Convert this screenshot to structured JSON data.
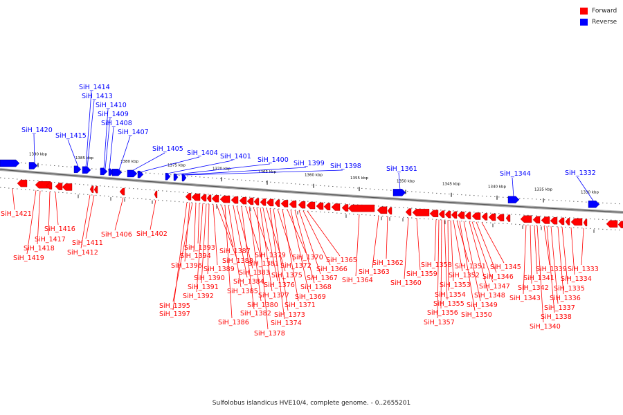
{
  "legend": {
    "forward_label": "Forward",
    "reverse_label": "Reverse",
    "forward_color": "#ff0000",
    "reverse_color": "#0000ff"
  },
  "caption": "Sulfolobus islandicus HVE10/4, complete genome. - 0..2655201",
  "scale_ticks": [
    "1390 kbp",
    "1385 kbp",
    "1380 kbp",
    "1375 kbp",
    "1370 kbp",
    "1365 kbp",
    "1360 kbp",
    "1355 kbp",
    "1350 kbp",
    "1345 kbp",
    "1340 kbp",
    "1335 kbp",
    "1330 kbp"
  ],
  "reverse_genes": [
    "SiH_1420",
    "SiH_1415",
    "SiH_1414",
    "SiH_1413",
    "SiH_1410",
    "SiH_1409",
    "SiH_1408",
    "SiH_1407",
    "SiH_1405",
    "SiH_1404",
    "SiH_1401",
    "SiH_1400",
    "SiH_1399",
    "SiH_1398",
    "SiH_1361",
    "SiH_1344",
    "SiH_1332"
  ],
  "forward_genes": [
    "SiH_1421",
    "SiH_1419",
    "SiH_1418",
    "SiH_1417",
    "SiH_1416",
    "SiH_1412",
    "SiH_1411",
    "SiH_1406",
    "SiH_1402",
    "SiH_1397",
    "SiH_1396",
    "SiH_1395",
    "SiH_1394",
    "SiH_1393",
    "SiH_1392",
    "SiH_1391",
    "SiH_1390",
    "SiH_1389",
    "SiH_1388",
    "SiH_1387",
    "SiH_1386",
    "SiH_1385",
    "SiH_1384",
    "SiH_1383",
    "SiH_1382",
    "SiH_1381",
    "SiH_1380",
    "SiH_1379",
    "SiH_1378",
    "SiH_1377",
    "SiH_1376",
    "SiH_1375",
    "SiH_1374",
    "SiH_1373",
    "SiH_1372",
    "SiH_1371",
    "SiH_1370",
    "SiH_1369",
    "SiH_1368",
    "SiH_1367",
    "SiH_1366",
    "SiH_1365",
    "SiH_1364",
    "SiH_1363",
    "SiH_1362",
    "SiH_1360",
    "SiH_1359",
    "SiH_1358",
    "SiH_1357",
    "SiH_1356",
    "SiH_1355",
    "SiH_1354",
    "SiH_1353",
    "SiH_1352",
    "SiH_1351",
    "SiH_1350",
    "SiH_1349",
    "SiH_1348",
    "SiH_1347",
    "SiH_1346",
    "SiH_1345",
    "SiH_1343",
    "SiH_1342",
    "SiH_1341",
    "SiH_1340",
    "SiH_1339",
    "SiH_1338",
    "SiH_1337",
    "SiH_1336",
    "SiH_1335",
    "SiH_1334",
    "SiH_1333"
  ]
}
